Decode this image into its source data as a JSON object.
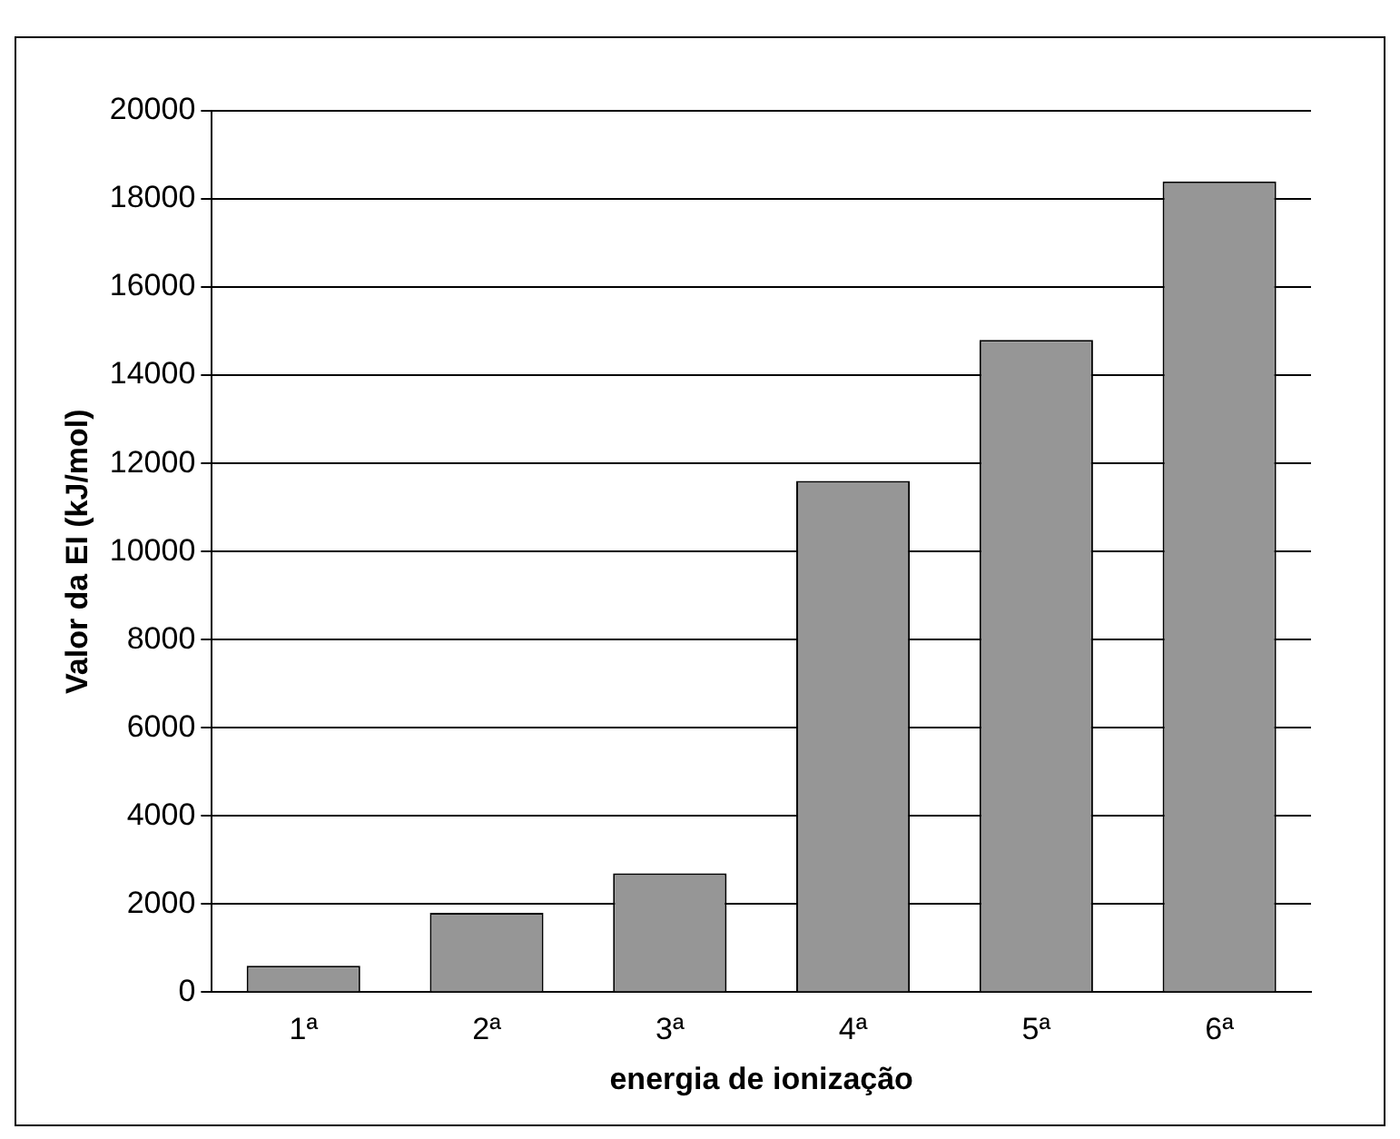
{
  "chart_data": {
    "type": "bar",
    "xlabel": "energia de ionização",
    "ylabel": "Valor da EI (kJ/mol)",
    "categories": [
      "1ª",
      "2ª",
      "3ª",
      "4ª",
      "5ª",
      "6ª"
    ],
    "values": [
      600,
      1800,
      2700,
      11600,
      14800,
      18400
    ],
    "color": "#969696",
    "ylim": [
      0,
      20000
    ],
    "yticks": [
      0,
      2000,
      4000,
      6000,
      8000,
      10000,
      12000,
      14000,
      16000,
      18000,
      20000
    ],
    "grid": "y",
    "legend": false
  }
}
